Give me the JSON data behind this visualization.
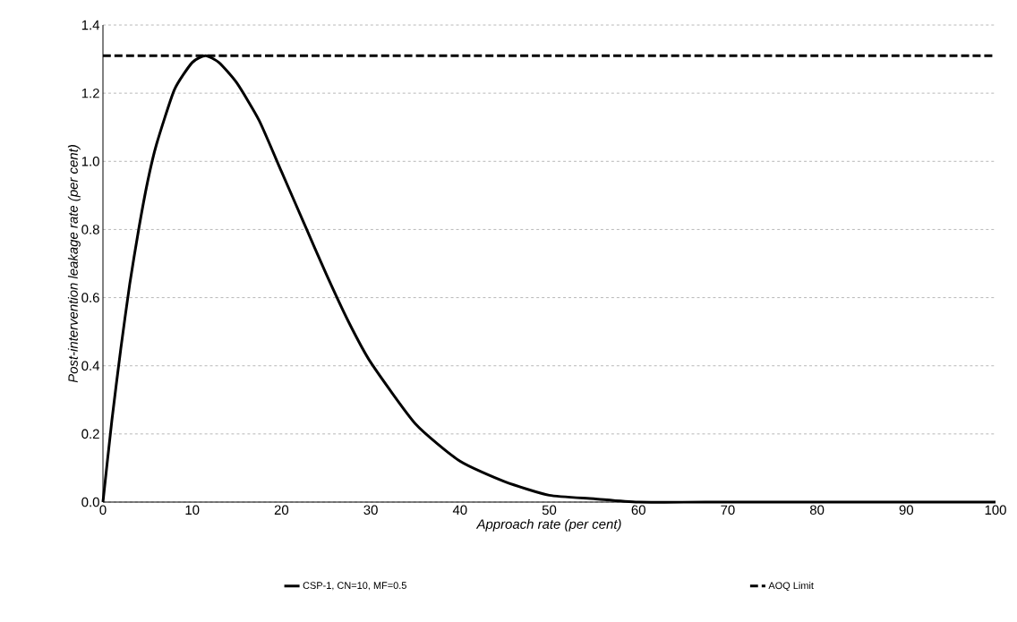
{
  "chart_data": {
    "type": "line",
    "xlabel": "Approach rate (per cent)",
    "ylabel": "Post-intervention leakage rate (per cent)",
    "xlim": [
      0,
      100
    ],
    "ylim": [
      0,
      1.4
    ],
    "xticks": [
      0,
      10,
      20,
      30,
      40,
      50,
      60,
      70,
      80,
      90,
      100
    ],
    "yticks": [
      {
        "value": 0,
        "label": "0.0"
      },
      {
        "value": 0.2,
        "label": "0.2"
      },
      {
        "value": 0.4,
        "label": "0.4"
      },
      {
        "value": 0.6,
        "label": "0.6"
      },
      {
        "value": 0.8,
        "label": "0.8"
      },
      {
        "value": 1.0,
        "label": "1.0"
      },
      {
        "value": 1.2,
        "label": "1.2"
      },
      {
        "value": 1.4,
        "label": "1.4"
      }
    ],
    "grid": "y",
    "legend": "bottom",
    "marker": "none",
    "series": [
      {
        "name": "CSP-1, CN=10, MF=0.5",
        "color": "#000000",
        "line_style": "solid",
        "x": [
          0,
          1,
          2,
          3,
          4,
          5,
          6,
          8,
          10,
          11.5,
          13,
          15,
          17.5,
          20,
          22.5,
          25,
          27.5,
          30,
          35,
          40,
          45,
          50,
          55,
          60,
          70,
          80,
          90,
          100
        ],
        "values": [
          0,
          0.24,
          0.45,
          0.64,
          0.8,
          0.94,
          1.05,
          1.21,
          1.29,
          1.31,
          1.29,
          1.23,
          1.12,
          0.97,
          0.82,
          0.67,
          0.53,
          0.41,
          0.23,
          0.12,
          0.06,
          0.02,
          0.01,
          0,
          0,
          0,
          0,
          0
        ]
      },
      {
        "name": "AOQ Limit",
        "color": "#000000",
        "line_style": "dashed",
        "x": [
          0,
          100
        ],
        "values": [
          1.31,
          1.31
        ]
      }
    ]
  }
}
